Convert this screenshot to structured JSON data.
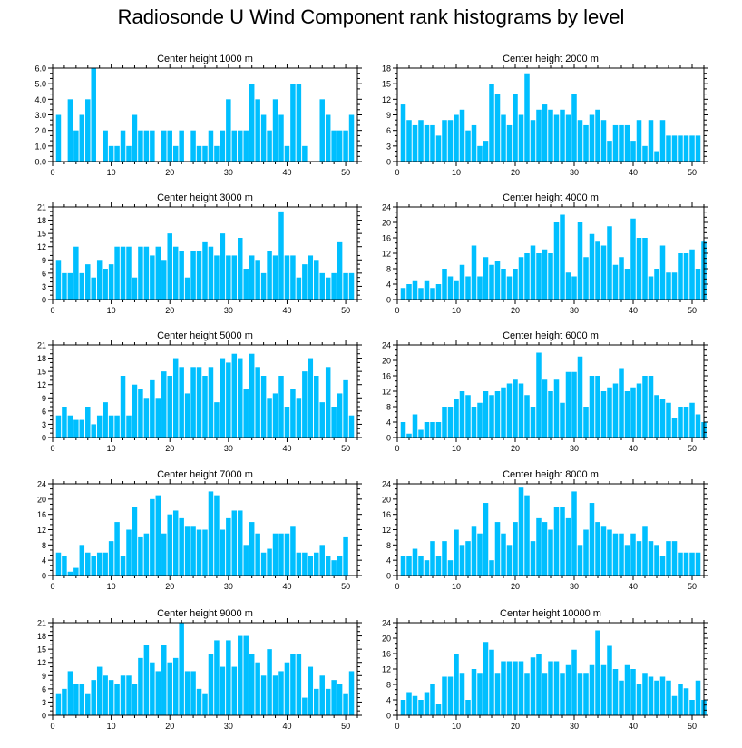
{
  "page": {
    "title": "Radiosonde U Wind Component rank histograms by level"
  },
  "style": {
    "bar_color": "#00BFFF",
    "axis_color": "#000000"
  },
  "chart_data": [
    {
      "type": "bar",
      "title": "Center height 1000 m",
      "xlim": [
        0,
        52
      ],
      "ylim": [
        0,
        6
      ],
      "yticks": [
        0,
        1,
        2,
        3,
        4,
        5,
        6
      ],
      "ytick_labels": [
        "0.0",
        "1.0",
        "2.0",
        "3.0",
        "4.0",
        "5.0",
        "6.0"
      ],
      "xticks": [
        0,
        10,
        20,
        30,
        40,
        50
      ],
      "values": [
        3,
        0,
        4,
        2,
        3,
        4,
        6,
        0,
        2,
        1,
        1,
        2,
        1,
        3,
        2,
        2,
        2,
        0,
        2,
        2,
        1,
        2,
        0,
        2,
        1,
        1,
        2,
        1,
        2,
        4,
        2,
        2,
        2,
        5,
        4,
        3,
        2,
        4,
        3,
        1,
        5,
        5,
        1,
        0,
        0,
        4,
        3,
        2,
        2,
        2,
        3
      ]
    },
    {
      "type": "bar",
      "title": "Center height 2000 m",
      "xlim": [
        0,
        52
      ],
      "ylim": [
        0,
        18
      ],
      "yticks": [
        0,
        3,
        6,
        9,
        12,
        15,
        18
      ],
      "ytick_labels": [
        "0",
        "3",
        "6",
        "9",
        "12",
        "15",
        "18"
      ],
      "xticks": [
        0,
        10,
        20,
        30,
        40,
        50
      ],
      "values": [
        11,
        8,
        7,
        8,
        7,
        7,
        5,
        8,
        8,
        9,
        10,
        6,
        7,
        3,
        4,
        15,
        13,
        9,
        7,
        13,
        9,
        17,
        8,
        10,
        11,
        10,
        9,
        10,
        9,
        13,
        8,
        7,
        9,
        10,
        8,
        4,
        7,
        7,
        7,
        4,
        8,
        3,
        8,
        2,
        8,
        5,
        5,
        5,
        5,
        5,
        5
      ]
    },
    {
      "type": "bar",
      "title": "Center height 3000 m",
      "xlim": [
        0,
        52
      ],
      "ylim": [
        0,
        21
      ],
      "yticks": [
        0,
        3,
        6,
        9,
        12,
        15,
        18,
        21
      ],
      "ytick_labels": [
        "0",
        "3",
        "6",
        "9",
        "12",
        "15",
        "18",
        "21"
      ],
      "xticks": [
        0,
        10,
        20,
        30,
        40,
        50
      ],
      "values": [
        9,
        6,
        6,
        12,
        6,
        8,
        5,
        9,
        7,
        8,
        12,
        12,
        12,
        5,
        12,
        12,
        10,
        12,
        9,
        15,
        12,
        11,
        5,
        11,
        11,
        13,
        12,
        10,
        15,
        10,
        10,
        14,
        7,
        10,
        9,
        6,
        11,
        10,
        20,
        10,
        10,
        5,
        8,
        10,
        9,
        6,
        5,
        6,
        13,
        6,
        6
      ]
    },
    {
      "type": "bar",
      "title": "Center height 4000 m",
      "xlim": [
        0,
        52
      ],
      "ylim": [
        0,
        24
      ],
      "yticks": [
        0,
        4,
        8,
        12,
        16,
        20,
        24
      ],
      "ytick_labels": [
        "0",
        "4",
        "8",
        "12",
        "16",
        "20",
        "24"
      ],
      "xticks": [
        0,
        10,
        20,
        30,
        40,
        50
      ],
      "values": [
        3,
        4,
        5,
        3,
        5,
        3,
        4,
        8,
        6,
        5,
        9,
        6,
        14,
        6,
        11,
        9,
        10,
        8,
        6,
        8,
        11,
        12,
        14,
        12,
        13,
        12,
        20,
        22,
        7,
        6,
        20,
        11,
        17,
        15,
        14,
        19,
        9,
        11,
        8,
        21,
        16,
        16,
        6,
        8,
        14,
        7,
        7,
        12,
        12,
        13,
        8,
        15
      ]
    },
    {
      "type": "bar",
      "title": "Center height 5000 m",
      "xlim": [
        0,
        52
      ],
      "ylim": [
        0,
        21
      ],
      "yticks": [
        0,
        3,
        6,
        9,
        12,
        15,
        18,
        21
      ],
      "ytick_labels": [
        "0",
        "3",
        "6",
        "9",
        "12",
        "15",
        "18",
        "21"
      ],
      "xticks": [
        0,
        10,
        20,
        30,
        40,
        50
      ],
      "values": [
        5,
        7,
        5,
        4,
        4,
        7,
        3,
        5,
        8,
        5,
        5,
        14,
        5,
        12,
        11,
        9,
        13,
        9,
        15,
        14,
        18,
        16,
        10,
        16,
        16,
        14,
        16,
        8,
        18,
        17,
        19,
        18,
        11,
        19,
        16,
        14,
        9,
        10,
        14,
        7,
        11,
        9,
        15,
        18,
        14,
        8,
        16,
        7,
        10,
        13,
        5
      ]
    },
    {
      "type": "bar",
      "title": "Center height 6000 m",
      "xlim": [
        0,
        52
      ],
      "ylim": [
        0,
        24
      ],
      "yticks": [
        0,
        4,
        8,
        12,
        16,
        20,
        24
      ],
      "ytick_labels": [
        "0",
        "4",
        "8",
        "12",
        "16",
        "20",
        "24"
      ],
      "xticks": [
        0,
        10,
        20,
        30,
        40,
        50
      ],
      "values": [
        4,
        1,
        6,
        2,
        4,
        4,
        4,
        8,
        8,
        10,
        12,
        11,
        8,
        9,
        12,
        11,
        12,
        13,
        14,
        15,
        14,
        11,
        8,
        22,
        15,
        12,
        15,
        9,
        17,
        17,
        21,
        8,
        16,
        16,
        12,
        13,
        14,
        18,
        12,
        13,
        14,
        16,
        16,
        11,
        10,
        9,
        5,
        8,
        8,
        9,
        6,
        4
      ]
    },
    {
      "type": "bar",
      "title": "Center height 7000 m",
      "xlim": [
        0,
        52
      ],
      "ylim": [
        0,
        24
      ],
      "yticks": [
        0,
        4,
        8,
        12,
        16,
        20,
        24
      ],
      "ytick_labels": [
        "0",
        "4",
        "8",
        "12",
        "16",
        "20",
        "24"
      ],
      "xticks": [
        0,
        10,
        20,
        30,
        40,
        50
      ],
      "values": [
        6,
        5,
        1,
        2,
        8,
        6,
        5,
        6,
        6,
        9,
        14,
        5,
        12,
        18,
        10,
        11,
        20,
        21,
        11,
        16,
        17,
        15,
        13,
        13,
        12,
        12,
        22,
        21,
        12,
        15,
        17,
        17,
        8,
        14,
        11,
        6,
        7,
        11,
        11,
        11,
        13,
        6,
        6,
        5,
        6,
        8,
        5,
        4,
        5,
        10
      ]
    },
    {
      "type": "bar",
      "title": "Center height 8000 m",
      "xlim": [
        0,
        52
      ],
      "ylim": [
        0,
        24
      ],
      "yticks": [
        0,
        4,
        8,
        12,
        16,
        20,
        24
      ],
      "ytick_labels": [
        "0",
        "4",
        "8",
        "12",
        "16",
        "20",
        "24"
      ],
      "xticks": [
        0,
        10,
        20,
        30,
        40,
        50
      ],
      "values": [
        5,
        5,
        7,
        5,
        4,
        9,
        5,
        9,
        4,
        12,
        8,
        9,
        13,
        11,
        19,
        4,
        14,
        11,
        8,
        14,
        23,
        21,
        9,
        15,
        14,
        12,
        18,
        18,
        15,
        22,
        8,
        12,
        19,
        14,
        13,
        12,
        11,
        11,
        8,
        11,
        9,
        13,
        9,
        8,
        5,
        9,
        9,
        6,
        6,
        6,
        6
      ]
    },
    {
      "type": "bar",
      "title": "Center height 9000 m",
      "xlim": [
        0,
        52
      ],
      "ylim": [
        0,
        21
      ],
      "yticks": [
        0,
        3,
        6,
        9,
        12,
        15,
        18,
        21
      ],
      "ytick_labels": [
        "0",
        "3",
        "6",
        "9",
        "12",
        "15",
        "18",
        "21"
      ],
      "xticks": [
        0,
        10,
        20,
        30,
        40,
        50
      ],
      "values": [
        5,
        6,
        10,
        7,
        7,
        5,
        8,
        11,
        9,
        8,
        7,
        9,
        9,
        7,
        13,
        16,
        12,
        10,
        16,
        12,
        13,
        21,
        10,
        10,
        6,
        5,
        14,
        17,
        11,
        17,
        11,
        18,
        18,
        14,
        12,
        9,
        15,
        9,
        10,
        12,
        14,
        14,
        4,
        11,
        6,
        9,
        6,
        8,
        7,
        5,
        10
      ]
    },
    {
      "type": "bar",
      "title": "Center height 10000 m",
      "xlim": [
        0,
        52
      ],
      "ylim": [
        0,
        24
      ],
      "yticks": [
        0,
        4,
        8,
        12,
        16,
        20,
        24
      ],
      "ytick_labels": [
        "0",
        "4",
        "8",
        "12",
        "16",
        "20",
        "24"
      ],
      "xticks": [
        0,
        10,
        20,
        30,
        40,
        50
      ],
      "values": [
        4,
        6,
        5,
        4,
        6,
        8,
        3,
        10,
        10,
        16,
        11,
        4,
        12,
        11,
        19,
        17,
        11,
        14,
        14,
        14,
        14,
        11,
        15,
        16,
        11,
        14,
        14,
        11,
        13,
        17,
        11,
        11,
        13,
        22,
        13,
        18,
        12,
        9,
        13,
        12,
        8,
        11,
        10,
        9,
        10,
        9,
        5,
        8,
        7,
        4,
        9,
        4
      ]
    }
  ]
}
